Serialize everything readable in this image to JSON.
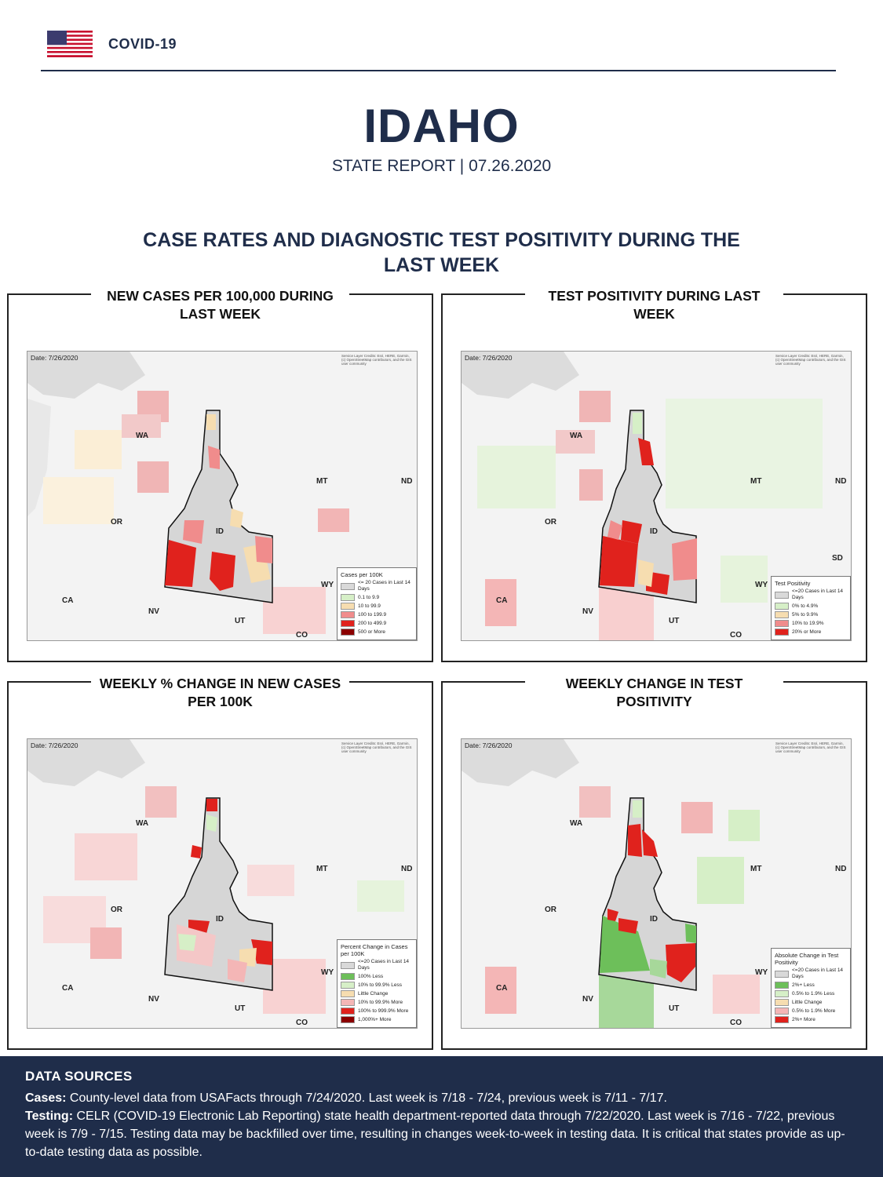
{
  "header": {
    "brand": "COVID-19",
    "title": "IDAHO",
    "subtitle": "STATE REPORT | 07.26.2020"
  },
  "section_title": "CASE RATES AND DIAGNOSTIC TEST POSITIVITY DURING THE LAST WEEK",
  "colors": {
    "navy": "#1f2d4a",
    "red": "#e0221d",
    "pink": "#f2a5a5",
    "grey": "#d6d6d6",
    "green": "#6dbf5a",
    "light_green": "#d6efc7",
    "tan": "#f6ddb0"
  },
  "panels": [
    {
      "title": "NEW CASES PER 100,000 DURING LAST WEEK",
      "date": "Date: 7/26/2020",
      "credit": "Service Layer Credits: Esri, HERE, Garmin, (c) OpenStreetMap contributors, and the GIS user community",
      "state_labels": [
        "WA",
        "OR",
        "CA",
        "NV",
        "UT",
        "ID",
        "MT",
        "ND",
        "WY",
        "CO"
      ],
      "legend": {
        "title": "Cases per 100K",
        "items": [
          {
            "label": "<= 20 Cases in Last 14 Days",
            "color": "#d9d9d9"
          },
          {
            "label": "0.1 to 9.9",
            "color": "#d6efc7"
          },
          {
            "label": "10 to 99.9",
            "color": "#f6ddb0"
          },
          {
            "label": "100 to 199.9",
            "color": "#f08c8c"
          },
          {
            "label": "200 to 499.9",
            "color": "#e0221d"
          },
          {
            "label": "500 or More",
            "color": "#8b0000"
          }
        ]
      }
    },
    {
      "title": "TEST POSITIVITY DURING LAST WEEK",
      "date": "Date: 7/26/2020",
      "credit": "Service Layer Credits: Esri, HERE, Garmin, (c) OpenStreetMap contributors, and the GIS user community",
      "state_labels": [
        "WA",
        "OR",
        "CA",
        "NV",
        "UT",
        "ID",
        "MT",
        "ND",
        "SD",
        "WY",
        "CO"
      ],
      "legend": {
        "title": "Test Positivity",
        "items": [
          {
            "label": "<=20 Cases in Last 14 Days",
            "color": "#d9d9d9"
          },
          {
            "label": "0% to 4.9%",
            "color": "#d6efc7"
          },
          {
            "label": "5% to 9.9%",
            "color": "#f6ddb0"
          },
          {
            "label": "10% to 19.9%",
            "color": "#f08c8c"
          },
          {
            "label": "20% or More",
            "color": "#e0221d"
          }
        ]
      }
    },
    {
      "title": "WEEKLY % CHANGE IN NEW CASES PER 100K",
      "date": "Date: 7/26/2020",
      "credit": "Service Layer Credits: Esri, HERE, Garmin, (c) OpenStreetMap contributors, and the GIS user community",
      "state_labels": [
        "WA",
        "OR",
        "CA",
        "NV",
        "UT",
        "ID",
        "MT",
        "ND",
        "WY",
        "CO"
      ],
      "legend": {
        "title": "Percent Change in Cases per 100K",
        "items": [
          {
            "label": "<=20 Cases in Last 14 Days",
            "color": "#d9d9d9"
          },
          {
            "label": "100% Less",
            "color": "#6dbf5a"
          },
          {
            "label": "10% to 99.9% Less",
            "color": "#d6efc7"
          },
          {
            "label": "Little Change",
            "color": "#f6ddb0"
          },
          {
            "label": "10% to 99.9% More",
            "color": "#f4b6b6"
          },
          {
            "label": "100% to 999.9% More",
            "color": "#e0221d"
          },
          {
            "label": "1,000%+ More",
            "color": "#8b0000"
          }
        ]
      }
    },
    {
      "title": "WEEKLY CHANGE IN TEST POSITIVITY",
      "date": "Date: 7/26/2020",
      "credit": "Service Layer Credits: Esri, HERE, Garmin, (c) OpenStreetMap contributors, and the GIS user community",
      "state_labels": [
        "WA",
        "OR",
        "CA",
        "NV",
        "UT",
        "ID",
        "MT",
        "ND",
        "WY",
        "CO"
      ],
      "legend": {
        "title": "Absolute Change in Test Positivity",
        "items": [
          {
            "label": "<=20 Cases in Last 14 Days",
            "color": "#d9d9d9"
          },
          {
            "label": "2%+ Less",
            "color": "#6dbf5a"
          },
          {
            "label": "0.5% to 1.9% Less",
            "color": "#d6efc7"
          },
          {
            "label": "Little Change",
            "color": "#f6ddb0"
          },
          {
            "label": "0.5% to 1.9% More",
            "color": "#f4b6b6"
          },
          {
            "label": "2%+ More",
            "color": "#e0221d"
          }
        ]
      }
    }
  ],
  "footer": {
    "heading": "DATA SOURCES",
    "cases_label": "Cases:",
    "cases_text": " County-level data from USAFacts through 7/24/2020. Last week is 7/18 - 7/24, previous week is 7/11 - 7/17.",
    "testing_label": "Testing:",
    "testing_text": " CELR (COVID-19 Electronic Lab Reporting) state health department-reported data through 7/22/2020. Last week is 7/16 - 7/22, previous week is 7/9 - 7/15. Testing data may be backfilled over time, resulting in changes week-to-week in testing data. It is critical that states provide as up-to-date testing data as possible."
  }
}
